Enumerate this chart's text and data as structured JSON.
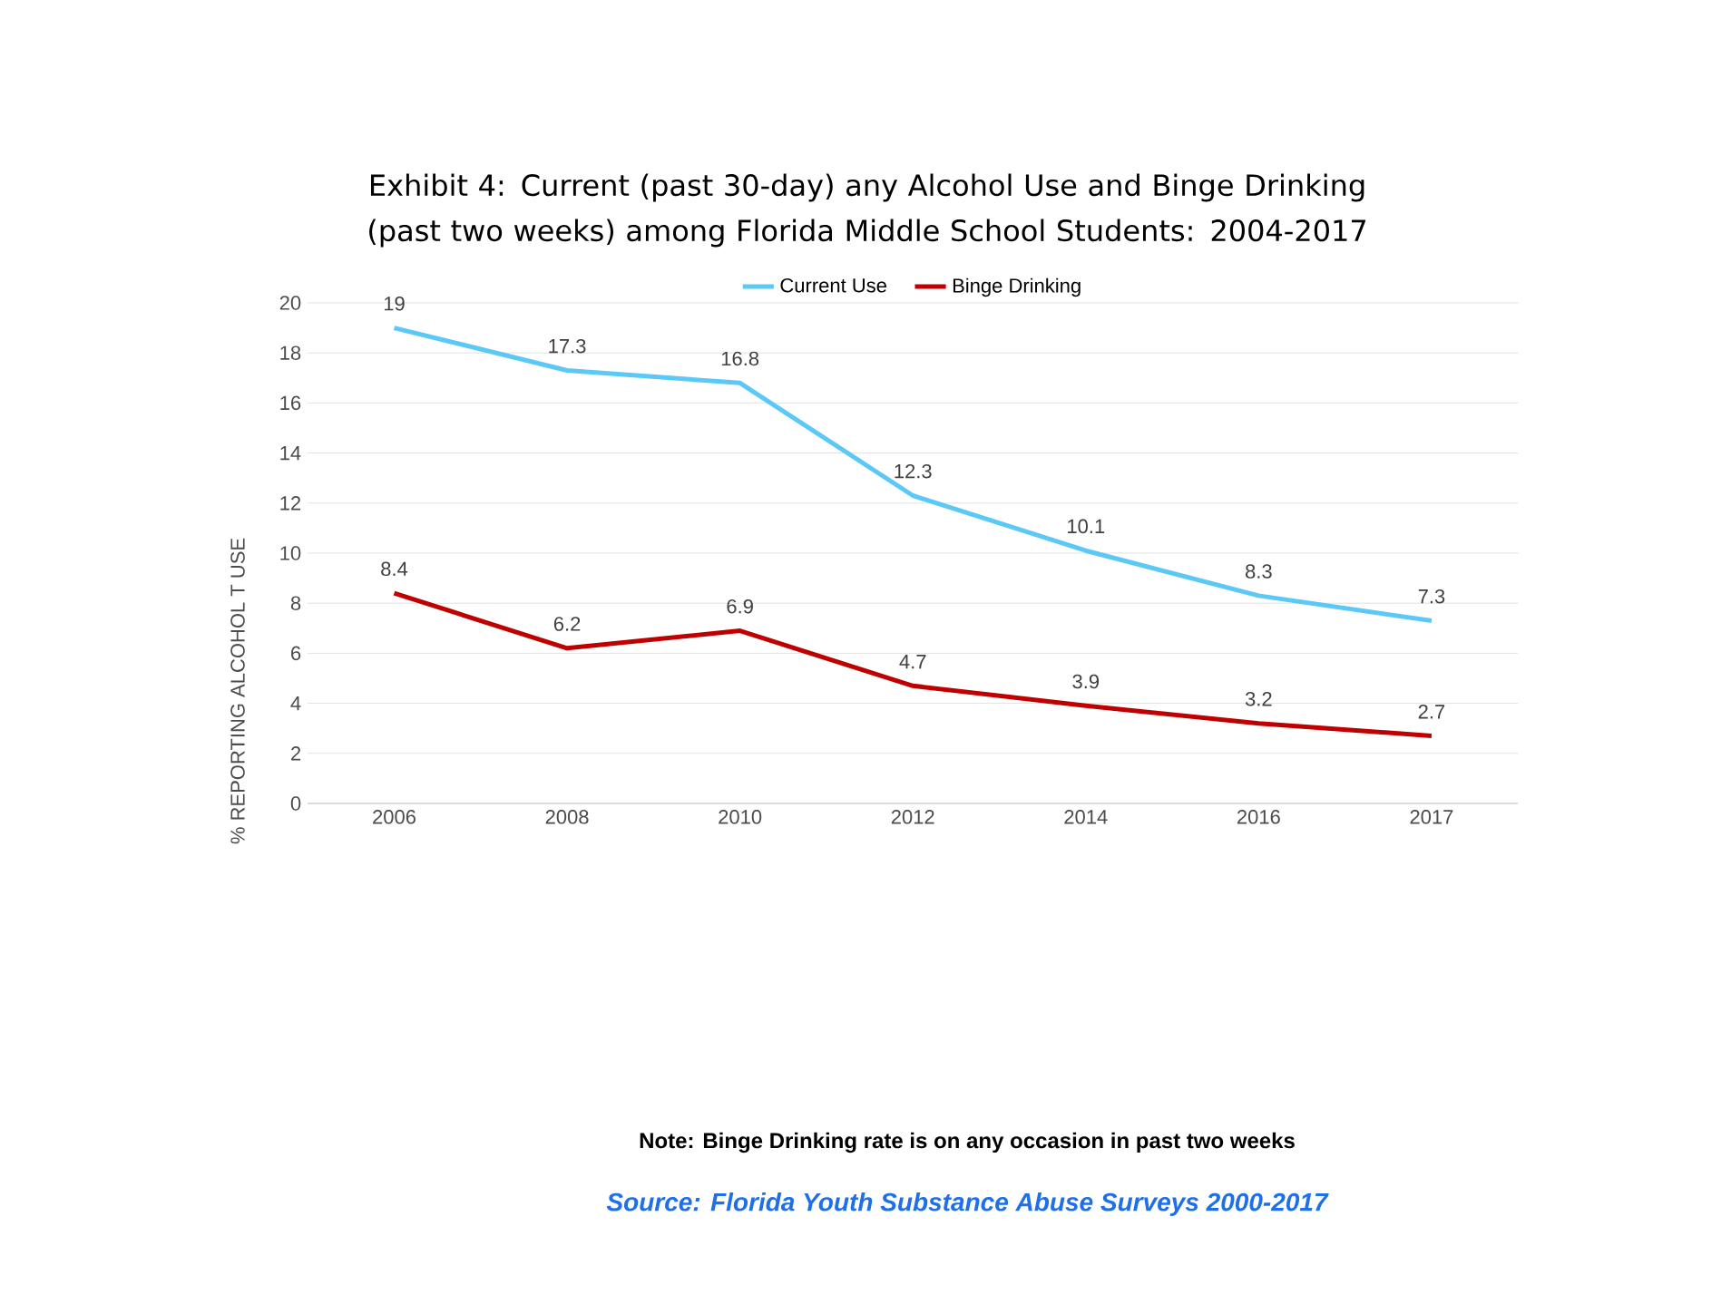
{
  "chart_data": {
    "type": "line",
    "title": "Exhibit 4:  Current (past 30-day) any Alcohol Use and Binge Drinking (past two weeks) among Florida Middle School Students: 2004-2017",
    "ylabel": "% REPORTING ALCOHOL T USE",
    "categories": [
      "2006",
      "2008",
      "2010",
      "2012",
      "2014",
      "2016",
      "2017"
    ],
    "series": [
      {
        "name": "Current Use",
        "color": "#5bc8f8",
        "values": [
          19,
          17.3,
          16.8,
          12.3,
          10.1,
          8.3,
          7.3
        ]
      },
      {
        "name": "Binge Drinking",
        "color": "#c00000",
        "values": [
          8.4,
          6.2,
          6.9,
          4.7,
          3.9,
          3.2,
          2.7
        ]
      }
    ],
    "ylim": [
      0,
      20
    ],
    "yticks": [
      0,
      2,
      4,
      6,
      8,
      10,
      12,
      14,
      16,
      18,
      20
    ],
    "grid": "y",
    "legend": "top",
    "data_labels": true,
    "marker": "none",
    "line_style": "solid",
    "annotations": [
      "Note: Binge Drinking rate is on any occasion in past two weeks",
      "Source: Florida Youth Substance Abuse Surveys 2000-2017"
    ]
  }
}
